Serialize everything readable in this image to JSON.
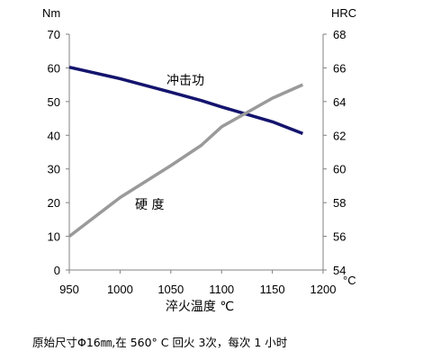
{
  "chart_data": {
    "type": "line",
    "x": [
      950,
      1000,
      1050,
      1080,
      1100,
      1150,
      1180
    ],
    "series": [
      {
        "name": "冲击功",
        "axis": "left",
        "color": "#14146e",
        "values": [
          60.2,
          56.8,
          52.8,
          50.3,
          48.4,
          44.0,
          40.5
        ]
      },
      {
        "name": "硬 度",
        "axis": "right",
        "color": "#9a9a9a",
        "values": [
          56.0,
          58.3,
          60.2,
          61.4,
          62.5,
          64.2,
          65.0
        ]
      }
    ],
    "xlabel": "淬火温度 ℃",
    "ylabel_left": "Nm",
    "ylabel_right": "HRC",
    "right_axis_extra_label": "°C",
    "xlim": [
      950,
      1200
    ],
    "ylim_left": [
      0,
      70
    ],
    "ylim_right": [
      54,
      68
    ],
    "xticks": [
      950,
      1000,
      1050,
      1100,
      1150,
      1200
    ],
    "yticks_left": [
      0,
      10,
      20,
      30,
      40,
      50,
      60,
      70
    ],
    "yticks_right": [
      54,
      56,
      58,
      60,
      62,
      64,
      66,
      68
    ],
    "grid": false,
    "legend": "none"
  },
  "caption": "原始尺寸Φ16㎜,在 560° C 回火 3次，每次 1 小时"
}
